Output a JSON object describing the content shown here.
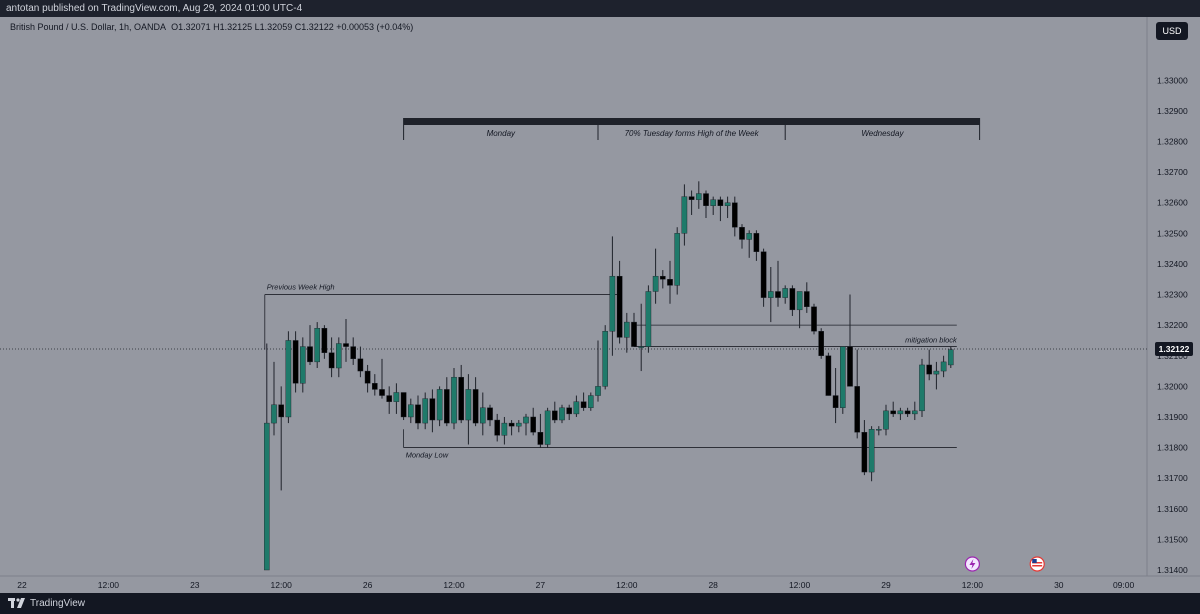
{
  "header": {
    "publish_line": "antotan published on TradingView.com, Aug 29, 2024 01:00 UTC-4"
  },
  "symbol_info": {
    "name": "British Pound / U.S. Dollar, 1h, OANDA",
    "ohlc": "O1.32071  H1.32125  L1.32059  C1.32122  +0.00053 (+0.04%)"
  },
  "currency": "USD",
  "footer": {
    "brand": "TradingView"
  },
  "colors": {
    "up": "#1e7a6a",
    "down": "#000000",
    "background": "#9598a1"
  },
  "chart_data": {
    "type": "candlestick",
    "symbol": "GBPUSD",
    "timeframe": "1h",
    "ylim": [
      1.314,
      1.3305
    ],
    "y_ticks": [
      "1.33000",
      "1.32900",
      "1.32800",
      "1.32700",
      "1.32600",
      "1.32500",
      "1.32400",
      "1.32300",
      "1.32200",
      "1.32100",
      "1.32000",
      "1.31900",
      "1.31800",
      "1.31700",
      "1.31600",
      "1.31500",
      "1.31400"
    ],
    "x_ticks": [
      {
        "label": "22",
        "t": 2
      },
      {
        "label": "12:00",
        "t": 14
      },
      {
        "label": "23",
        "t": 26
      },
      {
        "label": "12:00",
        "t": 38
      },
      {
        "label": "26",
        "t": 50
      },
      {
        "label": "12:00",
        "t": 62
      },
      {
        "label": "27",
        "t": 74
      },
      {
        "label": "12:00",
        "t": 86
      },
      {
        "label": "28",
        "t": 98
      },
      {
        "label": "12:00",
        "t": 110
      },
      {
        "label": "29",
        "t": 122
      },
      {
        "label": "12:00",
        "t": 134
      },
      {
        "label": "30",
        "t": 146
      },
      {
        "label": "09:00",
        "t": 155
      }
    ],
    "candles": [
      {
        "t": 36,
        "o": 1.314,
        "h": 1.3214,
        "l": 1.314,
        "c": 1.3188
      },
      {
        "t": 37,
        "o": 1.3188,
        "h": 1.3208,
        "l": 1.3184,
        "c": 1.3194
      },
      {
        "t": 38,
        "o": 1.3194,
        "h": 1.32,
        "l": 1.3166,
        "c": 1.319
      },
      {
        "t": 39,
        "o": 1.319,
        "h": 1.3218,
        "l": 1.3188,
        "c": 1.3215
      },
      {
        "t": 40,
        "o": 1.3215,
        "h": 1.3218,
        "l": 1.3198,
        "c": 1.3201
      },
      {
        "t": 41,
        "o": 1.3201,
        "h": 1.3216,
        "l": 1.3198,
        "c": 1.3213
      },
      {
        "t": 42,
        "o": 1.3213,
        "h": 1.322,
        "l": 1.3207,
        "c": 1.3208
      },
      {
        "t": 43,
        "o": 1.3208,
        "h": 1.3221,
        "l": 1.3206,
        "c": 1.3219
      },
      {
        "t": 44,
        "o": 1.3219,
        "h": 1.322,
        "l": 1.3209,
        "c": 1.3211
      },
      {
        "t": 45,
        "o": 1.3211,
        "h": 1.3216,
        "l": 1.3203,
        "c": 1.3206
      },
      {
        "t": 46,
        "o": 1.3206,
        "h": 1.3216,
        "l": 1.3203,
        "c": 1.3214
      },
      {
        "t": 47,
        "o": 1.3214,
        "h": 1.3222,
        "l": 1.3208,
        "c": 1.3213
      },
      {
        "t": 48,
        "o": 1.3213,
        "h": 1.3216,
        "l": 1.3207,
        "c": 1.3209
      },
      {
        "t": 49,
        "o": 1.3209,
        "h": 1.3213,
        "l": 1.3203,
        "c": 1.3205
      },
      {
        "t": 50,
        "o": 1.3205,
        "h": 1.3207,
        "l": 1.3198,
        "c": 1.3201
      },
      {
        "t": 51,
        "o": 1.3201,
        "h": 1.3204,
        "l": 1.3197,
        "c": 1.3199
      },
      {
        "t": 52,
        "o": 1.3199,
        "h": 1.3209,
        "l": 1.3196,
        "c": 1.3197
      },
      {
        "t": 53,
        "o": 1.3197,
        "h": 1.32,
        "l": 1.3191,
        "c": 1.3195
      },
      {
        "t": 54,
        "o": 1.3195,
        "h": 1.3201,
        "l": 1.3191,
        "c": 1.3198
      },
      {
        "t": 55,
        "o": 1.3198,
        "h": 1.3198,
        "l": 1.3189,
        "c": 1.319
      },
      {
        "t": 56,
        "o": 1.319,
        "h": 1.3196,
        "l": 1.3188,
        "c": 1.3194
      },
      {
        "t": 57,
        "o": 1.3194,
        "h": 1.3197,
        "l": 1.3186,
        "c": 1.3188
      },
      {
        "t": 58,
        "o": 1.3188,
        "h": 1.3198,
        "l": 1.3186,
        "c": 1.3196
      },
      {
        "t": 59,
        "o": 1.3196,
        "h": 1.3199,
        "l": 1.3185,
        "c": 1.3189
      },
      {
        "t": 60,
        "o": 1.3189,
        "h": 1.32,
        "l": 1.3187,
        "c": 1.3199
      },
      {
        "t": 61,
        "o": 1.3199,
        "h": 1.3203,
        "l": 1.3187,
        "c": 1.3188
      },
      {
        "t": 62,
        "o": 1.3188,
        "h": 1.3206,
        "l": 1.3186,
        "c": 1.3203
      },
      {
        "t": 63,
        "o": 1.3203,
        "h": 1.3207,
        "l": 1.3188,
        "c": 1.3189
      },
      {
        "t": 64,
        "o": 1.3189,
        "h": 1.3204,
        "l": 1.3181,
        "c": 1.3199
      },
      {
        "t": 65,
        "o": 1.3199,
        "h": 1.3203,
        "l": 1.3187,
        "c": 1.3188
      },
      {
        "t": 66,
        "o": 1.3188,
        "h": 1.3198,
        "l": 1.3184,
        "c": 1.3193
      },
      {
        "t": 67,
        "o": 1.3193,
        "h": 1.3194,
        "l": 1.3187,
        "c": 1.3189
      },
      {
        "t": 68,
        "o": 1.3189,
        "h": 1.3191,
        "l": 1.3182,
        "c": 1.3184
      },
      {
        "t": 69,
        "o": 1.3184,
        "h": 1.319,
        "l": 1.3181,
        "c": 1.3188
      },
      {
        "t": 70,
        "o": 1.3188,
        "h": 1.3189,
        "l": 1.3184,
        "c": 1.3187
      },
      {
        "t": 71,
        "o": 1.3187,
        "h": 1.3189,
        "l": 1.3185,
        "c": 1.3188
      },
      {
        "t": 72,
        "o": 1.3188,
        "h": 1.3191,
        "l": 1.3184,
        "c": 1.319
      },
      {
        "t": 73,
        "o": 1.319,
        "h": 1.3193,
        "l": 1.3184,
        "c": 1.3185
      },
      {
        "t": 74,
        "o": 1.3185,
        "h": 1.3191,
        "l": 1.318,
        "c": 1.3181
      },
      {
        "t": 75,
        "o": 1.3181,
        "h": 1.3193,
        "l": 1.318,
        "c": 1.3192
      },
      {
        "t": 76,
        "o": 1.3192,
        "h": 1.3195,
        "l": 1.3188,
        "c": 1.3189
      },
      {
        "t": 77,
        "o": 1.3189,
        "h": 1.3194,
        "l": 1.3188,
        "c": 1.3193
      },
      {
        "t": 78,
        "o": 1.3193,
        "h": 1.3194,
        "l": 1.3189,
        "c": 1.3191
      },
      {
        "t": 79,
        "o": 1.3191,
        "h": 1.3197,
        "l": 1.319,
        "c": 1.3195
      },
      {
        "t": 80,
        "o": 1.3195,
        "h": 1.3198,
        "l": 1.3192,
        "c": 1.3193
      },
      {
        "t": 81,
        "o": 1.3193,
        "h": 1.3198,
        "l": 1.3192,
        "c": 1.3197
      },
      {
        "t": 82,
        "o": 1.3197,
        "h": 1.3215,
        "l": 1.3195,
        "c": 1.32
      },
      {
        "t": 83,
        "o": 1.32,
        "h": 1.322,
        "l": 1.3199,
        "c": 1.3218
      },
      {
        "t": 84,
        "o": 1.3218,
        "h": 1.3249,
        "l": 1.321,
        "c": 1.3236
      },
      {
        "t": 85,
        "o": 1.3236,
        "h": 1.3241,
        "l": 1.3214,
        "c": 1.3216
      },
      {
        "t": 86,
        "o": 1.3216,
        "h": 1.3224,
        "l": 1.3211,
        "c": 1.3221
      },
      {
        "t": 87,
        "o": 1.3221,
        "h": 1.3224,
        "l": 1.3213,
        "c": 1.3213
      },
      {
        "t": 88,
        "o": 1.3213,
        "h": 1.3227,
        "l": 1.3205,
        "c": 1.3213
      },
      {
        "t": 89,
        "o": 1.3213,
        "h": 1.3233,
        "l": 1.3211,
        "c": 1.3231
      },
      {
        "t": 90,
        "o": 1.3231,
        "h": 1.3245,
        "l": 1.3227,
        "c": 1.3236
      },
      {
        "t": 91,
        "o": 1.3236,
        "h": 1.3238,
        "l": 1.3232,
        "c": 1.3235
      },
      {
        "t": 92,
        "o": 1.3235,
        "h": 1.3241,
        "l": 1.3227,
        "c": 1.3233
      },
      {
        "t": 93,
        "o": 1.3233,
        "h": 1.3252,
        "l": 1.323,
        "c": 1.325
      },
      {
        "t": 94,
        "o": 1.325,
        "h": 1.3266,
        "l": 1.3246,
        "c": 1.3262
      },
      {
        "t": 95,
        "o": 1.3262,
        "h": 1.3264,
        "l": 1.3256,
        "c": 1.3261
      },
      {
        "t": 96,
        "o": 1.3261,
        "h": 1.3267,
        "l": 1.3258,
        "c": 1.3263
      },
      {
        "t": 97,
        "o": 1.3263,
        "h": 1.3264,
        "l": 1.3255,
        "c": 1.3259
      },
      {
        "t": 98,
        "o": 1.3259,
        "h": 1.3262,
        "l": 1.3256,
        "c": 1.3261
      },
      {
        "t": 99,
        "o": 1.3261,
        "h": 1.3262,
        "l": 1.3254,
        "c": 1.3259
      },
      {
        "t": 100,
        "o": 1.3259,
        "h": 1.3262,
        "l": 1.3255,
        "c": 1.326
      },
      {
        "t": 101,
        "o": 1.326,
        "h": 1.3262,
        "l": 1.3249,
        "c": 1.3252
      },
      {
        "t": 102,
        "o": 1.3252,
        "h": 1.3253,
        "l": 1.3245,
        "c": 1.3248
      },
      {
        "t": 103,
        "o": 1.3248,
        "h": 1.3251,
        "l": 1.3242,
        "c": 1.325
      },
      {
        "t": 104,
        "o": 1.325,
        "h": 1.3251,
        "l": 1.3241,
        "c": 1.3244
      },
      {
        "t": 105,
        "o": 1.3244,
        "h": 1.3245,
        "l": 1.3226,
        "c": 1.3229
      },
      {
        "t": 106,
        "o": 1.3229,
        "h": 1.3239,
        "l": 1.3221,
        "c": 1.3231
      },
      {
        "t": 107,
        "o": 1.3231,
        "h": 1.3241,
        "l": 1.3226,
        "c": 1.3229
      },
      {
        "t": 108,
        "o": 1.3229,
        "h": 1.3233,
        "l": 1.3227,
        "c": 1.3232
      },
      {
        "t": 109,
        "o": 1.3232,
        "h": 1.3233,
        "l": 1.3223,
        "c": 1.3225
      },
      {
        "t": 110,
        "o": 1.3225,
        "h": 1.3231,
        "l": 1.3219,
        "c": 1.3231
      },
      {
        "t": 111,
        "o": 1.3231,
        "h": 1.3234,
        "l": 1.3224,
        "c": 1.3226
      },
      {
        "t": 112,
        "o": 1.3226,
        "h": 1.3227,
        "l": 1.3217,
        "c": 1.3218
      },
      {
        "t": 113,
        "o": 1.3218,
        "h": 1.3219,
        "l": 1.3209,
        "c": 1.321
      },
      {
        "t": 114,
        "o": 1.321,
        "h": 1.3211,
        "l": 1.3197,
        "c": 1.3197
      },
      {
        "t": 115,
        "o": 1.3197,
        "h": 1.3206,
        "l": 1.3188,
        "c": 1.3193
      },
      {
        "t": 116,
        "o": 1.3193,
        "h": 1.3212,
        "l": 1.3191,
        "c": 1.3213
      },
      {
        "t": 117,
        "o": 1.3213,
        "h": 1.323,
        "l": 1.32,
        "c": 1.32
      },
      {
        "t": 118,
        "o": 1.32,
        "h": 1.3212,
        "l": 1.3183,
        "c": 1.3185
      },
      {
        "t": 119,
        "o": 1.3185,
        "h": 1.3189,
        "l": 1.3171,
        "c": 1.3172
      },
      {
        "t": 120,
        "o": 1.3172,
        "h": 1.3187,
        "l": 1.3169,
        "c": 1.3186
      },
      {
        "t": 121,
        "o": 1.3186,
        "h": 1.3187,
        "l": 1.3184,
        "c": 1.3186
      },
      {
        "t": 122,
        "o": 1.3186,
        "h": 1.3194,
        "l": 1.3184,
        "c": 1.3192
      },
      {
        "t": 123,
        "o": 1.3192,
        "h": 1.3195,
        "l": 1.319,
        "c": 1.3191
      },
      {
        "t": 124,
        "o": 1.3191,
        "h": 1.3193,
        "l": 1.3189,
        "c": 1.3192
      },
      {
        "t": 125,
        "o": 1.3192,
        "h": 1.3193,
        "l": 1.319,
        "c": 1.3191
      },
      {
        "t": 126,
        "o": 1.3191,
        "h": 1.3195,
        "l": 1.3189,
        "c": 1.3192
      },
      {
        "t": 127,
        "o": 1.3192,
        "h": 1.3209,
        "l": 1.319,
        "c": 1.3207
      },
      {
        "t": 128,
        "o": 1.3207,
        "h": 1.3212,
        "l": 1.3202,
        "c": 1.3204
      },
      {
        "t": 129,
        "o": 1.3204,
        "h": 1.3208,
        "l": 1.3199,
        "c": 1.3205
      },
      {
        "t": 130,
        "o": 1.3205,
        "h": 1.321,
        "l": 1.3203,
        "c": 1.3208
      },
      {
        "t": 131,
        "o": 1.3207,
        "h": 1.3213,
        "l": 1.3206,
        "c": 1.3212
      }
    ],
    "current_price": "1.32122",
    "annotations": [
      {
        "label": "Previous Week High",
        "price": 1.323,
        "t_start": 36,
        "t_end": 85
      },
      {
        "label": "Monday Low",
        "price": 1.318,
        "t_start": 55,
        "t_end": 131
      },
      {
        "label": "mitigation block",
        "price_top": 1.322,
        "price_bottom": 1.3213,
        "t_start": 87,
        "t_end": 131
      },
      {
        "label": "",
        "price": 1.322,
        "t_start": 87,
        "t_end": 131
      }
    ],
    "session_bands": [
      {
        "label": "Monday",
        "t_start": 55,
        "t_end": 82
      },
      {
        "label": "70% Tuesday forms High of the Week",
        "t_start": 82,
        "t_end": 108
      },
      {
        "label": "Wednesday",
        "t_start": 108,
        "t_end": 135
      }
    ],
    "event_icons": [
      {
        "name": "lightning-icon",
        "t": 134
      },
      {
        "name": "us-flag-icon",
        "t": 143
      },
      {
        "name": "us-flag-icon",
        "t": 168
      }
    ]
  }
}
